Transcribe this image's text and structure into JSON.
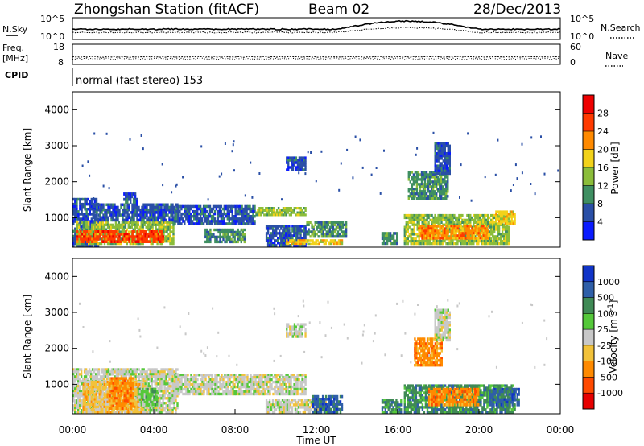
{
  "header": {
    "station": "Zhongshan Station (fitACF)",
    "beam": "Beam 02",
    "date": "28/Dec/2013"
  },
  "noise_panel": {
    "left_label": "N.Sky",
    "right_label": "N.Search",
    "left_ticks": [
      "10^5",
      "10^0"
    ],
    "right_ticks": [
      "10^5",
      "10^0"
    ]
  },
  "freq_panel": {
    "left_label_line1": "Freq.",
    "left_label_line2": "[MHz]",
    "right_label": "Nave",
    "left_ticks": [
      "18",
      "8"
    ],
    "right_ticks": [
      "60",
      "0"
    ]
  },
  "cpid": {
    "label": "CPID",
    "text": "normal (fast stereo) 153"
  },
  "chart_data": [
    {
      "type": "heatmap",
      "quantity": "Power",
      "ylabel": "Slant Range [km]",
      "ylim": [
        180,
        4500
      ],
      "yticks": [
        "1000",
        "2000",
        "3000",
        "4000"
      ],
      "colorbar_label": "Power [dB]",
      "colorbar_ticks": [
        "4",
        "8",
        "12",
        "16",
        "20",
        "24",
        "28"
      ],
      "colorbar_colors": [
        "#0a1bff",
        "#2a4fa6",
        "#3f8f62",
        "#8bbd3a",
        "#f2d21a",
        "#ff8a00",
        "#ff3a00",
        "#ee0000"
      ],
      "regions": [
        {
          "t": [
            0.0,
            1.3
          ],
          "r": [
            180,
            1550
          ],
          "level": 1
        },
        {
          "t": [
            0.2,
            5.0
          ],
          "r": [
            250,
            900
          ],
          "level": 3
        },
        {
          "t": [
            0.2,
            4.5
          ],
          "r": [
            300,
            650
          ],
          "level": 6
        },
        {
          "t": [
            1.0,
            5.2
          ],
          "r": [
            900,
            1400
          ],
          "level": 1
        },
        {
          "t": [
            2.5,
            3.2
          ],
          "r": [
            1400,
            1700
          ],
          "level": 1
        },
        {
          "t": [
            5.0,
            9.0
          ],
          "r": [
            800,
            1350
          ],
          "level": 1
        },
        {
          "t": [
            6.5,
            8.5
          ],
          "r": [
            300,
            700
          ],
          "level": 2
        },
        {
          "t": [
            9.0,
            11.5
          ],
          "r": [
            1050,
            1300
          ],
          "level": 3
        },
        {
          "t": [
            9.5,
            11.5
          ],
          "r": [
            200,
            800
          ],
          "level": 1
        },
        {
          "t": [
            10.5,
            13.3
          ],
          "r": [
            250,
            400
          ],
          "level": 4
        },
        {
          "t": [
            11.5,
            13.5
          ],
          "r": [
            450,
            900
          ],
          "level": 2
        },
        {
          "t": [
            10.5,
            11.5
          ],
          "r": [
            2300,
            2700
          ],
          "level": 1
        },
        {
          "t": [
            15.2,
            16.0
          ],
          "r": [
            250,
            600
          ],
          "level": 2
        },
        {
          "t": [
            16.3,
            21.5
          ],
          "r": [
            250,
            1100
          ],
          "level": 3
        },
        {
          "t": [
            17.0,
            20.5
          ],
          "r": [
            400,
            800
          ],
          "level": 5
        },
        {
          "t": [
            16.5,
            18.5
          ],
          "r": [
            1500,
            2300
          ],
          "level": 2
        },
        {
          "t": [
            17.8,
            18.6
          ],
          "r": [
            2200,
            3100
          ],
          "level": 1
        },
        {
          "t": [
            20.8,
            21.8
          ],
          "r": [
            800,
            1200
          ],
          "level": 4
        }
      ]
    },
    {
      "type": "heatmap",
      "quantity": "Velocity",
      "ylabel": "Slant Range [km]",
      "ylim": [
        180,
        4500
      ],
      "yticks": [
        "1000",
        "2000",
        "3000",
        "4000"
      ],
      "xticks": [
        "00:00",
        "04:00",
        "08:00",
        "12:00",
        "16:00",
        "20:00",
        "00:00"
      ],
      "xlabel": "Time UT",
      "colorbar_label": "Velocity  [m s^-1]",
      "colorbar_ticks": [
        "1000",
        "500",
        "100",
        "25",
        "-25",
        "-100",
        "-500",
        "-1000"
      ],
      "colorbar_colors": [
        "#1034c8",
        "#2f5fa8",
        "#3f8a55",
        "#55c83a",
        "#c8c8c8",
        "#f2c23a",
        "#ff8a00",
        "#ff4a00",
        "#e60000"
      ],
      "regions": [
        {
          "t": [
            0.0,
            5.2
          ],
          "r": [
            180,
            1450
          ],
          "level": 4
        },
        {
          "t": [
            0.5,
            3.5
          ],
          "r": [
            200,
            1100
          ],
          "level": 5
        },
        {
          "t": [
            1.8,
            3.0
          ],
          "r": [
            300,
            1200
          ],
          "level": 6
        },
        {
          "t": [
            3.2,
            4.2
          ],
          "r": [
            400,
            900
          ],
          "level": 3
        },
        {
          "t": [
            5.0,
            11.5
          ],
          "r": [
            700,
            1300
          ],
          "level": 4
        },
        {
          "t": [
            9.5,
            12.5
          ],
          "r": [
            200,
            600
          ],
          "level": 4
        },
        {
          "t": [
            11.8,
            13.3
          ],
          "r": [
            200,
            700
          ],
          "level": 1
        },
        {
          "t": [
            10.5,
            11.5
          ],
          "r": [
            2300,
            2700
          ],
          "level": 4
        },
        {
          "t": [
            15.2,
            16.2
          ],
          "r": [
            200,
            600
          ],
          "level": 2
        },
        {
          "t": [
            16.3,
            21.8
          ],
          "r": [
            200,
            1000
          ],
          "level": 2
        },
        {
          "t": [
            17.5,
            20.0
          ],
          "r": [
            400,
            900
          ],
          "level": 6
        },
        {
          "t": [
            16.8,
            18.2
          ],
          "r": [
            1500,
            2300
          ],
          "level": 6
        },
        {
          "t": [
            20.5,
            22.0
          ],
          "r": [
            400,
            900
          ],
          "level": 1
        },
        {
          "t": [
            17.8,
            18.6
          ],
          "r": [
            2200,
            3100
          ],
          "level": 4
        }
      ]
    }
  ]
}
